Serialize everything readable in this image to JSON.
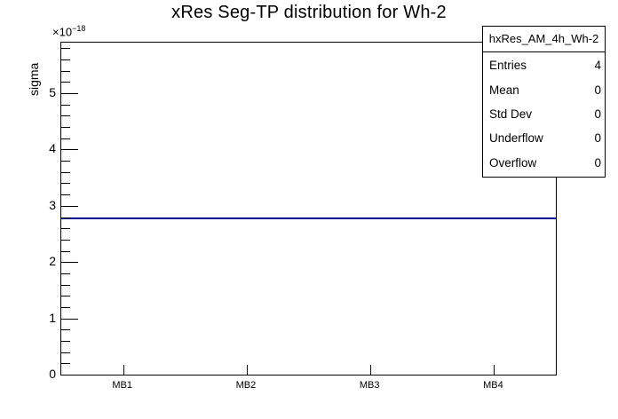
{
  "title": "xRes Seg-TP distribution for Wh-2",
  "axes": {
    "y_label": "sigma",
    "y_exponent_base": "×10",
    "y_exponent_power": "−18",
    "x_tick_labels": [
      "MB1",
      "MB2",
      "MB3",
      "MB4"
    ],
    "y_tick_labels": [
      "0",
      "1",
      "2",
      "3",
      "4",
      "5"
    ]
  },
  "stats_box": {
    "header": "hxRes_AM_4h_Wh-2",
    "rows": [
      {
        "label": "Entries",
        "value": "4"
      },
      {
        "label": "Mean",
        "value": "0"
      },
      {
        "label": "Std Dev",
        "value": "0"
      },
      {
        "label": "Underflow",
        "value": "0"
      },
      {
        "label": "Overflow",
        "value": "0"
      }
    ]
  },
  "colors": {
    "histogram_line": "#000099",
    "axis": "#000000",
    "background": "#ffffff",
    "text": "#000000"
  },
  "chart_data": {
    "type": "line",
    "title": "xRes Seg-TP distribution for Wh-2",
    "xlabel": "",
    "ylabel": "sigma",
    "categories": [
      "MB1",
      "MB2",
      "MB3",
      "MB4"
    ],
    "values": [
      2.78e-18,
      2.78e-18,
      2.78e-18,
      2.78e-18
    ],
    "y_scale": 1e-18,
    "ylim": [
      0,
      5.9e-18
    ],
    "y_major_step": 1e-18,
    "y_minor_step": 2e-19,
    "grid": false,
    "legend_position": "none",
    "stats": {
      "name": "hxRes_AM_4h_Wh-2",
      "entries": 4,
      "mean": 0,
      "std_dev": 0,
      "underflow": 0,
      "overflow": 0
    }
  }
}
